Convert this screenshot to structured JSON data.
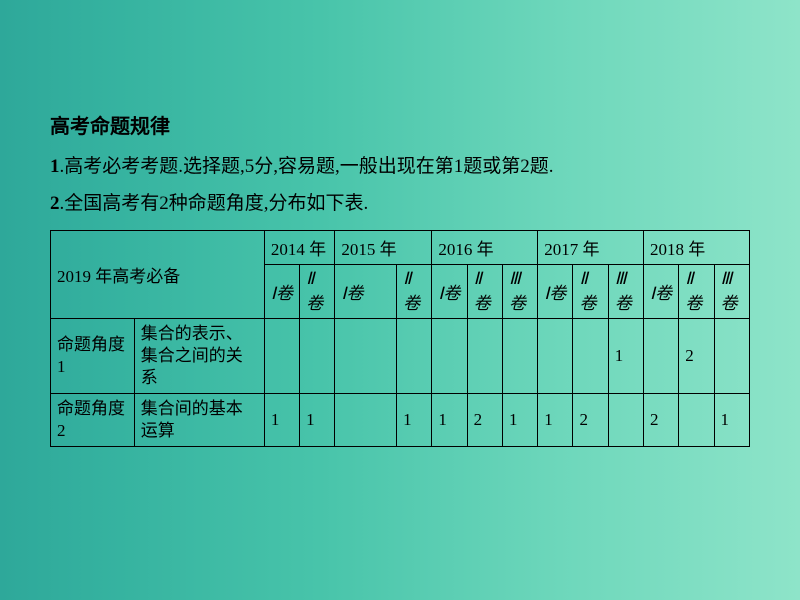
{
  "heading": "高考命题规律",
  "line1_num": "1",
  "line1_text": ".高考必考考题.选择题,5分,容易题,一般出现在第1题或第2题.",
  "line2_num": "2",
  "line2_text": ".全国高考有2种命题角度,分布如下表.",
  "table": {
    "prep_label": "2019 年高考必备",
    "years": [
      "2014 年",
      "2015 年",
      "2016 年",
      "2017 年",
      "2018 年"
    ],
    "volumes": {
      "y2014": [
        "Ⅰ卷",
        "Ⅱ卷"
      ],
      "y2015": [
        "Ⅰ卷",
        "Ⅱ卷"
      ],
      "y2016": [
        "Ⅰ卷",
        "Ⅱ卷",
        "Ⅲ卷"
      ],
      "y2017": [
        "Ⅰ卷",
        "Ⅱ卷",
        "Ⅲ卷"
      ],
      "y2018": [
        "Ⅰ卷",
        "Ⅱ卷",
        "Ⅲ卷"
      ]
    },
    "rows": [
      {
        "angle": "命题角度 1",
        "topic": "集合的表示、集合之间的关系",
        "cells": [
          "",
          "",
          "",
          "",
          "",
          "",
          "",
          "",
          "",
          "1",
          "",
          "2",
          ""
        ]
      },
      {
        "angle": "命题角度 2",
        "topic": "集合间的基本运算",
        "cells": [
          "1",
          "1",
          "",
          "1",
          "1",
          "2",
          "1",
          "1",
          "2",
          "",
          "2",
          "",
          "1"
        ]
      }
    ]
  },
  "style": {
    "border_color": "#000000",
    "font_family": "SimSun",
    "heading_fontsize": 20,
    "body_fontsize": 19,
    "table_fontsize": 17
  }
}
